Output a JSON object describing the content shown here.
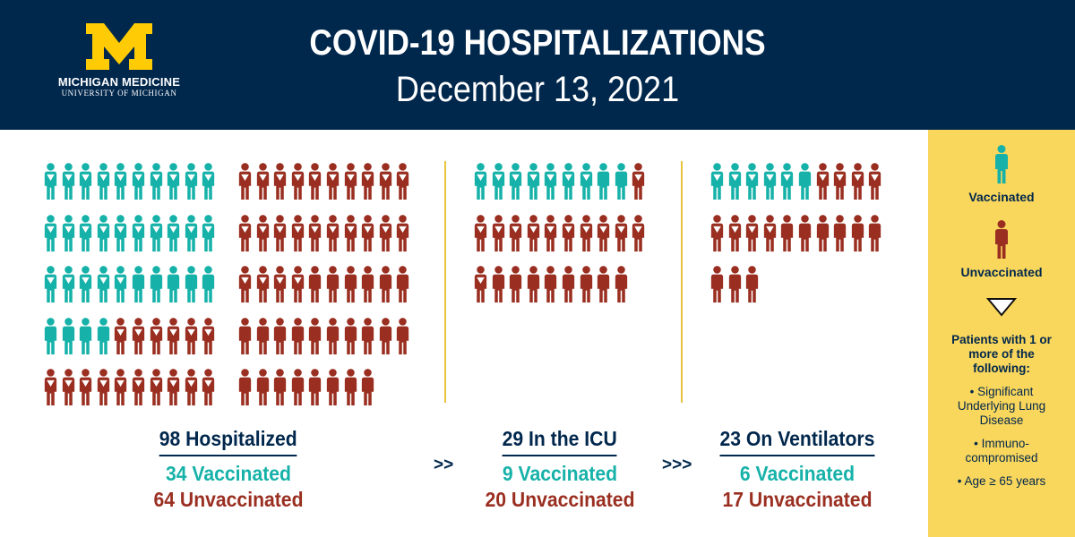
{
  "logo": {
    "mark": "M",
    "name": "MICHIGAN MEDICINE",
    "sub": "UNIVERSITY OF MICHIGAN"
  },
  "header": {
    "title": "COVID-19 HOSPITALIZATIONS",
    "date": "December 13, 2021"
  },
  "colors": {
    "navy": "#00274c",
    "maize": "#ffcb05",
    "vaccinated": "#16b2a9",
    "unvaccinated": "#9a2f21",
    "divider": "#e8c33e",
    "legend_bg": "#f9d65c"
  },
  "chart_data": {
    "type": "pictogram",
    "unit": "1 icon = 1 patient",
    "panels": [
      {
        "title": "98 Hospitalized",
        "total": 98,
        "vaccinated_label": "34 Vaccinated",
        "unvaccinated_label": "64 Unvaccinated",
        "vaccinated": 34,
        "unvaccinated": 64,
        "vaccinated_with_condition": 25,
        "unvaccinated_with_condition": 40
      },
      {
        "title": "29 In the ICU",
        "total": 29,
        "vaccinated_label": "9 Vaccinated",
        "unvaccinated_label": "20 Unvaccinated",
        "vaccinated": 9,
        "unvaccinated": 20,
        "vaccinated_with_condition": 7,
        "unvaccinated_with_condition": 12
      },
      {
        "title": "23 On Ventilators",
        "total": 23,
        "vaccinated_label": "6 Vaccinated",
        "unvaccinated_label": "17 Unvaccinated",
        "vaccinated": 6,
        "unvaccinated": 17,
        "vaccinated_with_condition": 5,
        "unvaccinated_with_condition": 8
      }
    ]
  },
  "arrows": [
    ">>",
    ">>>"
  ],
  "legend": {
    "vaccinated": "Vaccinated",
    "unvaccinated": "Unvaccinated",
    "note": "Patients with 1 or more of the following:",
    "bullets": [
      "• Significant Underlying Lung Disease",
      "• Immuno-compromised",
      "• Age ≥ 65 years"
    ]
  }
}
